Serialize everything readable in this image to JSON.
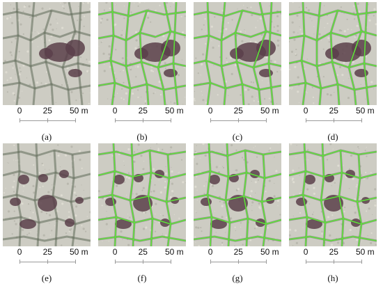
{
  "figure": {
    "scale_ticks": [
      "0",
      "25",
      "50 m"
    ],
    "panels": [
      {
        "id": "a",
        "caption": "(a)",
        "scene": 1,
        "overlay": false
      },
      {
        "id": "b",
        "caption": "(b)",
        "scene": 1,
        "overlay": true
      },
      {
        "id": "c",
        "caption": "(c)",
        "scene": 1,
        "overlay": true
      },
      {
        "id": "d",
        "caption": "(d)",
        "scene": 1,
        "overlay": true
      },
      {
        "id": "e",
        "caption": "(e)",
        "scene": 2,
        "overlay": false
      },
      {
        "id": "f",
        "caption": "(f)",
        "scene": 2,
        "overlay": true
      },
      {
        "id": "g",
        "caption": "(g)",
        "scene": 2,
        "overlay": true
      },
      {
        "id": "h",
        "caption": "(h)",
        "scene": 2,
        "overlay": true
      }
    ],
    "colors": {
      "terrain": "#cdccc3",
      "trough": "#5f6a58",
      "pond": "#5a3f4a",
      "overlay": "#5fe23a"
    }
  }
}
